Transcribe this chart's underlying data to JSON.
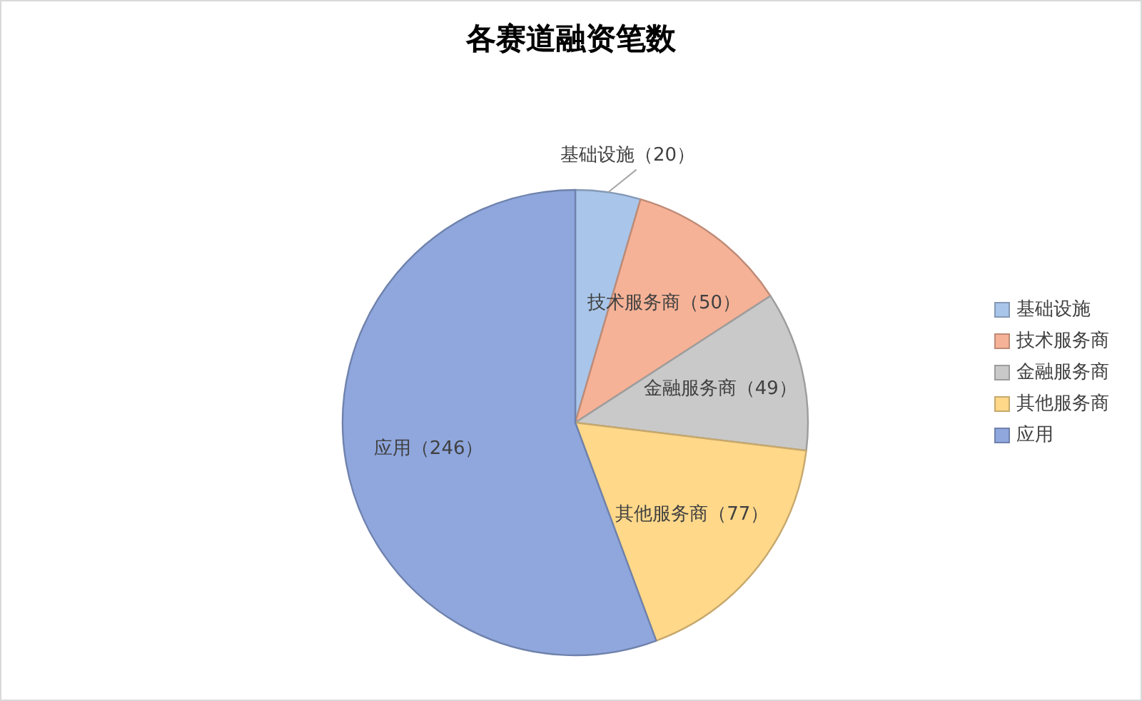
{
  "chart_data": {
    "type": "pie",
    "title": "各赛道融资笔数",
    "categories": [
      "基础设施",
      "技术服务商",
      "金融服务商",
      "其他服务商",
      "应用"
    ],
    "values": [
      20,
      50,
      49,
      77,
      246
    ],
    "colors": [
      "#a9c5e9",
      "#f5b297",
      "#c9c9c9",
      "#ffd88a",
      "#8fa7dd"
    ],
    "value_labels": [
      "基础设施（20）",
      "技术服务商（50）",
      "金融服务商（49）",
      "其他服务商（77）",
      "应用（246）"
    ],
    "legend": "right"
  }
}
